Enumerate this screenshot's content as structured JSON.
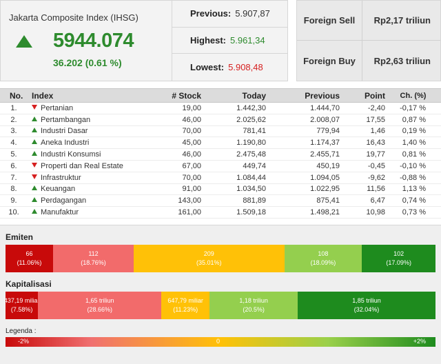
{
  "summary": {
    "title": "Jakarta Composite Index (IHSG)",
    "value": "5944.074",
    "change": "36.202 (0.61 %)",
    "trend_icon": "triangle-up-icon",
    "stats": [
      {
        "label": "Previous:",
        "value": "5.907,87",
        "tone": "neutral"
      },
      {
        "label": "Highest:",
        "value": "5.961,34",
        "tone": "up"
      },
      {
        "label": "Lowest:",
        "value": "5.908,48",
        "tone": "down"
      }
    ]
  },
  "foreign": [
    {
      "label": "Foreign Sell",
      "value": "Rp2,17 triliun"
    },
    {
      "label": "Foreign Buy",
      "value": "Rp2,63 triliun"
    }
  ],
  "table": {
    "headers": {
      "no": "No.",
      "index": "Index",
      "stock": "# Stock",
      "today": "Today",
      "previous": "Previous",
      "point": "Point",
      "ch": "Ch. (%)"
    },
    "rows": [
      {
        "no": "1.",
        "dir": "down",
        "name": "Pertanian",
        "stock": "19,00",
        "today": "1.442,30",
        "previous": "1.444,70",
        "point": "-2,40",
        "ch": "-0,17 %"
      },
      {
        "no": "2.",
        "dir": "up",
        "name": "Pertambangan",
        "stock": "46,00",
        "today": "2.025,62",
        "previous": "2.008,07",
        "point": "17,55",
        "ch": "0,87 %"
      },
      {
        "no": "3.",
        "dir": "up",
        "name": "Industri Dasar",
        "stock": "70,00",
        "today": "781,41",
        "previous": "779,94",
        "point": "1,46",
        "ch": "0,19 %"
      },
      {
        "no": "4.",
        "dir": "up",
        "name": "Aneka Industri",
        "stock": "45,00",
        "today": "1.190,80",
        "previous": "1.174,37",
        "point": "16,43",
        "ch": "1,40 %"
      },
      {
        "no": "5.",
        "dir": "up",
        "name": "Industri Konsumsi",
        "stock": "46,00",
        "today": "2.475,48",
        "previous": "2.455,71",
        "point": "19,77",
        "ch": "0,81 %"
      },
      {
        "no": "6.",
        "dir": "down",
        "name": "Properti dan Real Estate",
        "stock": "67,00",
        "today": "449,74",
        "previous": "450,19",
        "point": "-0,45",
        "ch": "-0,10 %"
      },
      {
        "no": "7.",
        "dir": "down",
        "name": "Infrastruktur",
        "stock": "70,00",
        "today": "1.084,44",
        "previous": "1.094,05",
        "point": "-9,62",
        "ch": "-0,88 %"
      },
      {
        "no": "8.",
        "dir": "up",
        "name": "Keuangan",
        "stock": "91,00",
        "today": "1.034,50",
        "previous": "1.022,95",
        "point": "11,56",
        "ch": "1,13 %"
      },
      {
        "no": "9.",
        "dir": "up",
        "name": "Perdagangan",
        "stock": "143,00",
        "today": "881,89",
        "previous": "875,41",
        "point": "6,47",
        "ch": "0,74 %"
      },
      {
        "no": "10.",
        "dir": "up",
        "name": "Manufaktur",
        "stock": "161,00",
        "today": "1.509,18",
        "previous": "1.498,21",
        "point": "10,98",
        "ch": "0,73 %"
      }
    ]
  },
  "emiten": {
    "title": "Emiten",
    "segments": [
      {
        "value": "66",
        "pct": "(11.06%)",
        "share": 11.06,
        "color": "#c80a0a"
      },
      {
        "value": "112",
        "pct": "(18.76%)",
        "share": 18.76,
        "color": "#f26b6b"
      },
      {
        "value": "209",
        "pct": "(35.01%)",
        "share": 35.01,
        "color": "#ffc107"
      },
      {
        "value": "108",
        "pct": "(18.09%)",
        "share": 18.09,
        "color": "#94cf4e"
      },
      {
        "value": "102",
        "pct": "(17.09%)",
        "share": 17.09,
        "color": "#1e8b1e"
      }
    ]
  },
  "kapitalisasi": {
    "title": "Kapitalisasi",
    "segments": [
      {
        "value": "437,19 miliar",
        "pct": "(7.58%)",
        "share": 7.58,
        "color": "#c80a0a"
      },
      {
        "value": "1,65 triliun",
        "pct": "(28.66%)",
        "share": 28.66,
        "color": "#f26b6b"
      },
      {
        "value": "647,79 miliar",
        "pct": "(11.23%)",
        "share": 11.23,
        "color": "#ffc107"
      },
      {
        "value": "1,18 triliun",
        "pct": "(20.5%)",
        "share": 20.5,
        "color": "#94cf4e"
      },
      {
        "value": "1,85 triliun",
        "pct": "(32.04%)",
        "share": 32.04,
        "color": "#1e8b1e"
      }
    ]
  },
  "legend": {
    "title": "Legenda :",
    "min": "-2%",
    "mid": "0",
    "max": "+2%"
  }
}
